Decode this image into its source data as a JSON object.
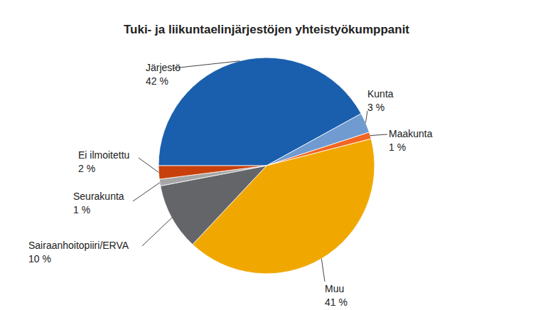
{
  "chart_data": {
    "type": "pie",
    "title": "Tuki- ja liikuntaelinjärjestöjen yhteistyökumppanit",
    "categories": [
      "Järjestö",
      "Kunta",
      "Maakunta",
      "Muu",
      "Sairaanhoitopiiri/ERVA",
      "Seurakunta",
      "Ei ilmoitettu"
    ],
    "values": [
      42,
      3,
      1,
      41,
      10,
      1,
      2
    ],
    "value_labels": [
      "42 %",
      "3 %",
      "1 %",
      "41 %",
      "10 %",
      "1 %",
      "2 %"
    ],
    "colors": [
      "#1a5fad",
      "#6f9bd1",
      "#f26522",
      "#f0a800",
      "#636569",
      "#a6a6a6",
      "#c8400b"
    ],
    "data_labels": true
  }
}
